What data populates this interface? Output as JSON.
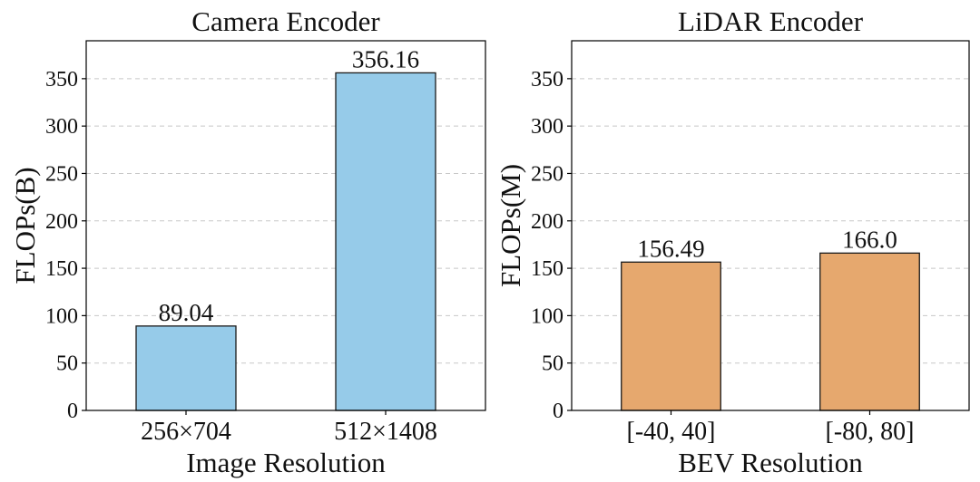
{
  "chart_data": [
    {
      "type": "bar",
      "title": "Camera Encoder",
      "xlabel": "Image Resolution",
      "ylabel": "FLOPs(B)",
      "categories": [
        "256×704",
        "512×1408"
      ],
      "values": [
        89.04,
        356.16
      ],
      "value_labels": [
        "89.04",
        "356.16"
      ],
      "ylim": [
        0,
        390
      ],
      "yticks": [
        0,
        50,
        100,
        150,
        200,
        250,
        300,
        350
      ],
      "grid": true,
      "bar_color": "#96cbe9"
    },
    {
      "type": "bar",
      "title": "LiDAR Encoder",
      "xlabel": "BEV Resolution",
      "ylabel": "FLOPs(M)",
      "categories": [
        "[-40, 40]",
        "[-80, 80]"
      ],
      "values": [
        156.49,
        166.0
      ],
      "value_labels": [
        "156.49",
        "166.0"
      ],
      "ylim": [
        0,
        390
      ],
      "yticks": [
        0,
        50,
        100,
        150,
        200,
        250,
        300,
        350
      ],
      "grid": true,
      "bar_color": "#e6a86e"
    }
  ]
}
